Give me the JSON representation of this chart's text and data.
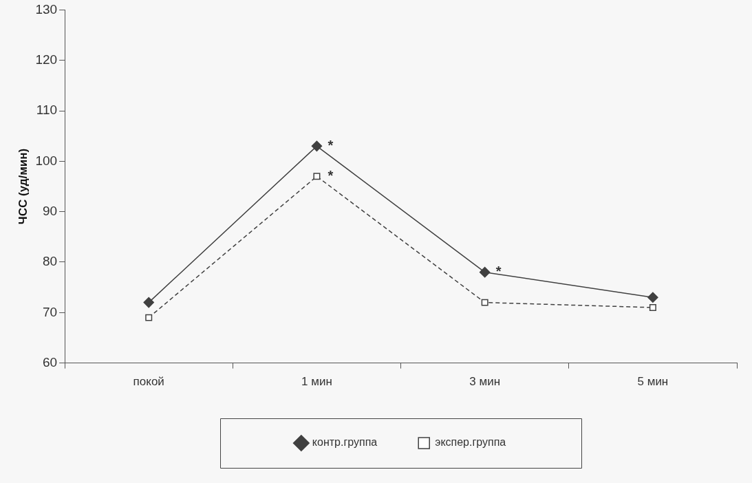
{
  "chart_data": {
    "type": "line",
    "ylabel": "ЧСС (уд/мин)",
    "categories": [
      "покой",
      "1 мин",
      "3 мин",
      "5 мин"
    ],
    "series": [
      {
        "name": "контр.группа",
        "color": "#404040",
        "marker": "diamond",
        "line_style": "solid",
        "values": [
          72,
          103,
          78,
          73
        ]
      },
      {
        "name": "экспер.группа",
        "color": "#404040",
        "marker": "square",
        "line_style": "dashed",
        "values": [
          69,
          97,
          72,
          71
        ]
      }
    ],
    "ylim": [
      60,
      130
    ],
    "yticks": [
      60,
      70,
      80,
      90,
      100,
      110,
      120,
      130
    ],
    "legend": "bottom",
    "annotations": [
      {
        "text": "*",
        "x": "1 мин",
        "y": 103
      },
      {
        "text": "*",
        "x": "1 мин",
        "y": 97
      },
      {
        "text": "*",
        "x": "3 мин",
        "y": 78
      }
    ]
  }
}
